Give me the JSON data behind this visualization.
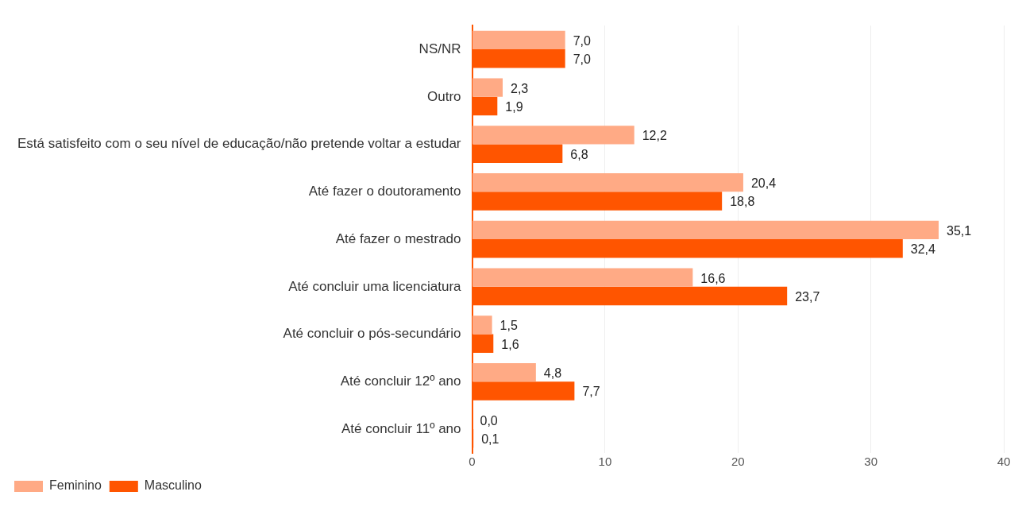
{
  "chart_data": {
    "type": "bar",
    "orientation": "horizontal",
    "categories": [
      "NS/NR",
      "Outro",
      "Está satisfeito com o seu nível de educação/não pretende voltar a estudar",
      "Até fazer o doutoramento",
      "Até fazer o mestrado",
      "Até concluir uma licenciatura",
      "Até concluir o pós-secundário",
      "Até concluir 12º ano",
      "Até concluir 11º ano"
    ],
    "series": [
      {
        "name": "Feminino",
        "color": "#ffaa85",
        "values": [
          7.0,
          2.3,
          12.2,
          20.4,
          35.1,
          16.6,
          1.5,
          4.8,
          0.0
        ],
        "value_labels": [
          "7,0",
          "2,3",
          "12,2",
          "20,4",
          "35,1",
          "16,6",
          "1,5",
          "4,8",
          "0,0"
        ]
      },
      {
        "name": "Masculino",
        "color": "#ff5500",
        "values": [
          7.0,
          1.9,
          6.8,
          18.8,
          32.4,
          23.7,
          1.6,
          7.7,
          0.1
        ],
        "value_labels": [
          "7,0",
          "1,9",
          "6,8",
          "18,8",
          "32,4",
          "23,7",
          "1,6",
          "7,7",
          "0,1"
        ]
      }
    ],
    "xlim": [
      0,
      40
    ],
    "xticks": [
      0,
      10,
      20,
      30,
      40
    ],
    "grid": "x",
    "legend": "bottom left"
  }
}
